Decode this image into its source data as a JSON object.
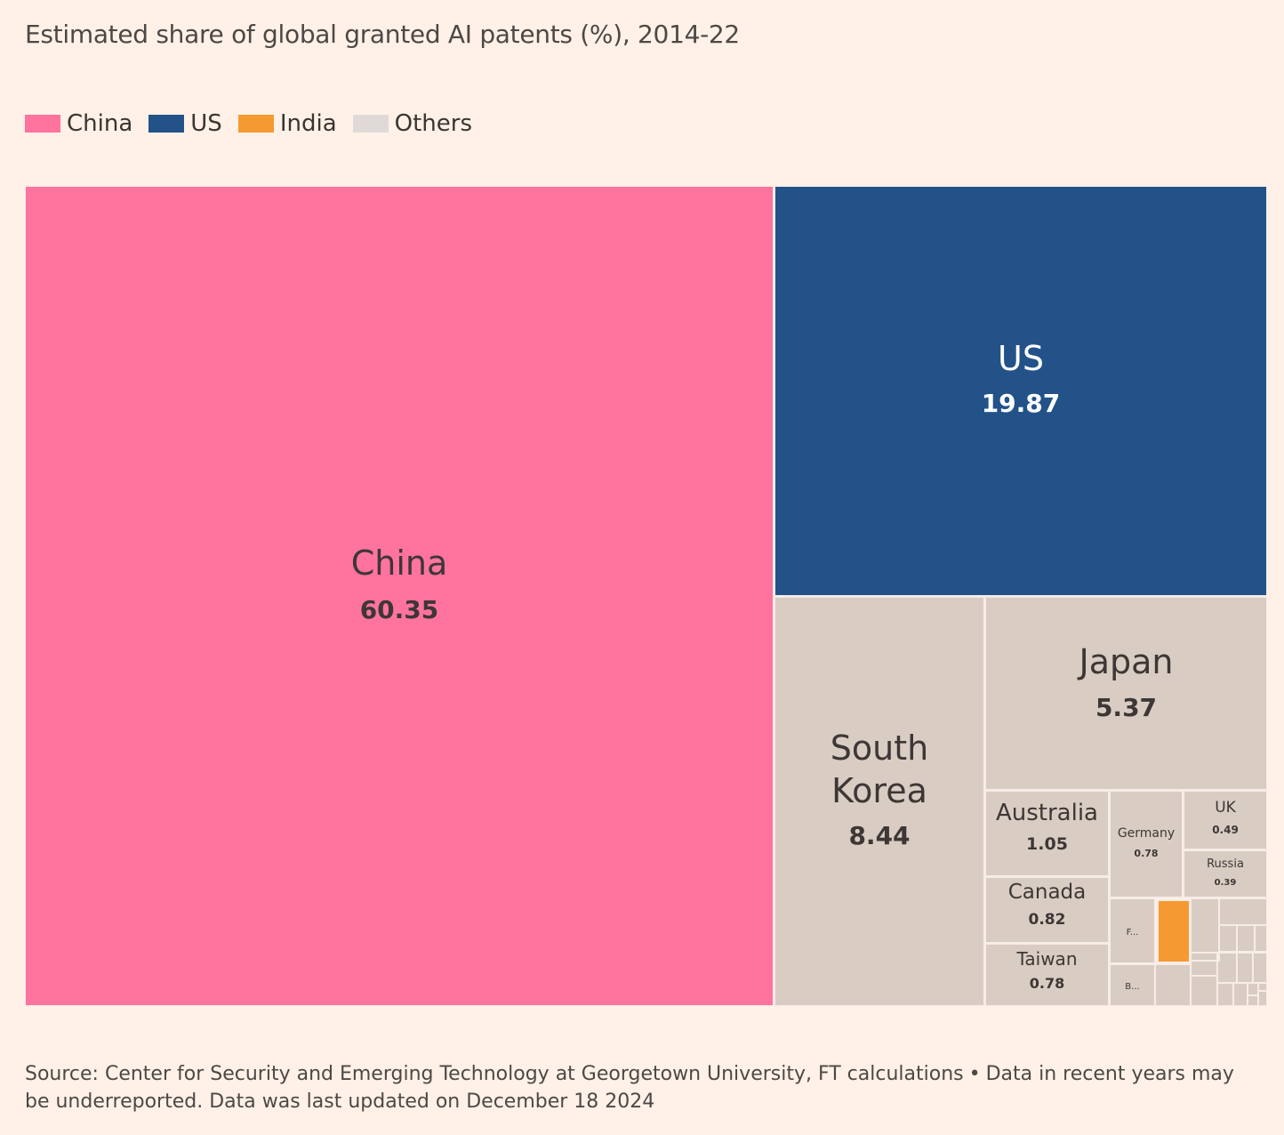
{
  "title": "Estimated share of global granted AI patents (%), 2014-22",
  "legend": [
    {
      "label": "China",
      "color": "#ff739f"
    },
    {
      "label": "US",
      "color": "#235289"
    },
    {
      "label": "India",
      "color": "#f59a31"
    },
    {
      "label": "Others",
      "color": "#dfdad7"
    }
  ],
  "chart_data": {
    "type": "treemap",
    "title": "Estimated share of global granted AI patents (%), 2014-22",
    "unit": "%",
    "cells": [
      {
        "label": "China",
        "value": 60.35,
        "group": "China"
      },
      {
        "label": "US",
        "value": 19.87,
        "group": "US"
      },
      {
        "label": "South Korea",
        "value": 8.44,
        "group": "Others"
      },
      {
        "label": "Japan",
        "value": 5.37,
        "group": "Others"
      },
      {
        "label": "Australia",
        "value": 1.05,
        "group": "Others"
      },
      {
        "label": "Canada",
        "value": 0.82,
        "group": "Others"
      },
      {
        "label": "Taiwan",
        "value": 0.78,
        "group": "Others"
      },
      {
        "label": "Germany",
        "value": 0.78,
        "group": "Others"
      },
      {
        "label": "UK",
        "value": 0.49,
        "group": "Others"
      },
      {
        "label": "Russia",
        "value": 0.39,
        "group": "Others"
      },
      {
        "label": "F...",
        "value": null,
        "group": "Others"
      },
      {
        "label": "B...",
        "value": null,
        "group": "Others"
      },
      {
        "label": "",
        "value": null,
        "group": "India"
      }
    ]
  },
  "footnote": {
    "source": "Source: Center for Security and Emerging Technology at Georgetown University, FT calculations",
    "separator": "•",
    "note": "Data in recent years may be underreported. Data was last updated on December 18 2024"
  }
}
